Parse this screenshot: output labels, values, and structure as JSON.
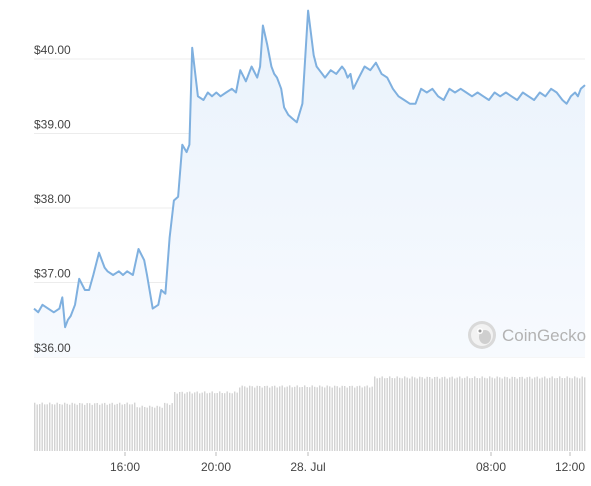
{
  "chart_data": {
    "type": "area",
    "x_tick_labels": [
      "16:00",
      "20:00",
      "28. Jul",
      "08:00",
      "12:00"
    ],
    "y_tick_labels": [
      "$40.00",
      "$39.00",
      "$38.00",
      "$37.00",
      "$36.00"
    ],
    "y_ticks": [
      40,
      39,
      38,
      37,
      36
    ],
    "ylim": [
      36,
      40.7
    ],
    "grid": true,
    "watermark": "CoinGecko",
    "colors": {
      "line": "#7fb0df",
      "area_top": "#e9f2fc",
      "area_bottom": "#f7fafe",
      "volume_bar": "#d3d3d3",
      "grid": "#ececec",
      "tick_text": "#444444"
    },
    "price_series": {
      "name": "",
      "x_hours": [
        0,
        0.3,
        0.6,
        1,
        1.4,
        1.8,
        2,
        2.2,
        2.4,
        2.6,
        2.9,
        3.2,
        3.6,
        3.9,
        4.2,
        4.6,
        5,
        5.2,
        5.6,
        6,
        6.3,
        6.6,
        7,
        7.4,
        7.8,
        8,
        8.4,
        8.8,
        9,
        9.3,
        9.6,
        9.9,
        10.2,
        10.5,
        10.8,
        11,
        11.2,
        11.6,
        12,
        12.3,
        12.6,
        12.9,
        13.2,
        13.6,
        14,
        14.3,
        14.6,
        15,
        15.4,
        15.8,
        16,
        16.2,
        16.5,
        16.8,
        17,
        17.2,
        17.5,
        17.7,
        18,
        18.3,
        18.6,
        19,
        19.4,
        19.8,
        20,
        20.2,
        20.4,
        20.6,
        21,
        21.4,
        21.8,
        22,
        22.2,
        22.4,
        22.6,
        23,
        23.4,
        23.8,
        24.2,
        24.6,
        25,
        25.4,
        25.8,
        26.2,
        26.6,
        27,
        27.4,
        27.8,
        28.2,
        28.6,
        29,
        29.4,
        29.8,
        30.2,
        30.6,
        31,
        31.4,
        31.8,
        32.2,
        32.6,
        33,
        33.4,
        33.8,
        34.2,
        34.6,
        35,
        35.4,
        35.8,
        36.2,
        36.6,
        37,
        37.4,
        37.7,
        38,
        38.3,
        38.5,
        38.7,
        39
      ],
      "y": [
        36.65,
        36.6,
        36.7,
        36.65,
        36.6,
        36.65,
        36.8,
        36.4,
        36.5,
        36.55,
        36.7,
        37.05,
        36.9,
        36.9,
        37.1,
        37.4,
        37.2,
        37.15,
        37.1,
        37.15,
        37.1,
        37.15,
        37.1,
        37.45,
        37.3,
        37.1,
        36.65,
        36.7,
        36.9,
        36.85,
        37.6,
        38.1,
        38.15,
        38.85,
        38.75,
        38.85,
        40.15,
        39.5,
        39.45,
        39.55,
        39.5,
        39.55,
        39.5,
        39.55,
        39.6,
        39.55,
        39.85,
        39.7,
        39.9,
        39.75,
        39.9,
        40.45,
        40.2,
        39.9,
        39.8,
        39.75,
        39.6,
        39.35,
        39.25,
        39.2,
        39.15,
        39.4,
        40.65,
        40.05,
        39.9,
        39.85,
        39.8,
        39.75,
        39.85,
        39.8,
        39.9,
        39.85,
        39.75,
        39.8,
        39.6,
        39.75,
        39.9,
        39.85,
        39.95,
        39.8,
        39.75,
        39.6,
        39.5,
        39.45,
        39.4,
        39.4,
        39.6,
        39.55,
        39.6,
        39.5,
        39.45,
        39.6,
        39.55,
        39.6,
        39.55,
        39.5,
        39.55,
        39.5,
        39.45,
        39.55,
        39.5,
        39.55,
        39.5,
        39.45,
        39.55,
        39.5,
        39.45,
        39.55,
        39.5,
        39.6,
        39.55,
        39.45,
        39.4,
        39.5,
        39.55,
        39.5,
        39.6,
        39.65
      ]
    },
    "volume": {
      "note": "",
      "levels": [
        {
          "from": 0,
          "to": 9.8,
          "level": 0.63
        },
        {
          "from": 7.2,
          "to": 9.2,
          "level": 0.59
        },
        {
          "from": 9.8,
          "to": 14.5,
          "level": 0.78
        },
        {
          "from": 14.5,
          "to": 24,
          "level": 0.86
        },
        {
          "from": 24,
          "to": 39,
          "level": 0.98
        }
      ]
    }
  }
}
